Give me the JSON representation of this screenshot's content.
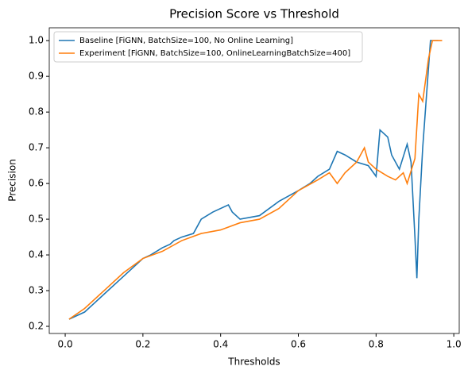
{
  "chart_data": {
    "type": "line",
    "title": "Precision Score vs Threshold",
    "xlabel": "Thresholds",
    "ylabel": "Precision",
    "xlim": [
      -0.041,
      1.014
    ],
    "ylim": [
      0.18,
      1.036
    ],
    "xticks": [
      {
        "value": 0,
        "label": "0.0"
      },
      0.2,
      0.4,
      0.6,
      0.8,
      {
        "value": 1,
        "label": "1.0"
      }
    ],
    "yticks": [
      0.2,
      0.3,
      0.4,
      0.5,
      0.6,
      0.7,
      0.8,
      0.9,
      {
        "value": 1,
        "label": "1.0"
      }
    ],
    "legend": "upper left",
    "series": [
      {
        "name": "Baseline [FiGNN, BatchSize=100, No Online Learning]",
        "color": "#1f77b4",
        "x": [
          0.01,
          0.05,
          0.1,
          0.15,
          0.2,
          0.22,
          0.25,
          0.27,
          0.28,
          0.3,
          0.33,
          0.35,
          0.38,
          0.42,
          0.43,
          0.45,
          0.5,
          0.55,
          0.6,
          0.63,
          0.65,
          0.68,
          0.7,
          0.72,
          0.75,
          0.78,
          0.8,
          0.81,
          0.83,
          0.84,
          0.86,
          0.88,
          0.89,
          0.9,
          0.905,
          0.91,
          0.92,
          0.94,
          0.96
        ],
        "values": [
          0.22,
          0.24,
          0.29,
          0.34,
          0.39,
          0.4,
          0.42,
          0.43,
          0.44,
          0.45,
          0.46,
          0.5,
          0.52,
          0.54,
          0.52,
          0.5,
          0.51,
          0.55,
          0.58,
          0.6,
          0.62,
          0.64,
          0.69,
          0.68,
          0.66,
          0.65,
          0.62,
          0.75,
          0.73,
          0.68,
          0.64,
          0.71,
          0.66,
          0.45,
          0.335,
          0.5,
          0.7,
          1.0,
          1.0
        ]
      },
      {
        "name": "Experiment [FiGNN, BatchSize=100, OnlineLearningBatchSize=400]",
        "color": "#ff7f0e",
        "x": [
          0.01,
          0.05,
          0.1,
          0.15,
          0.2,
          0.25,
          0.3,
          0.35,
          0.4,
          0.45,
          0.5,
          0.55,
          0.6,
          0.65,
          0.68,
          0.7,
          0.72,
          0.75,
          0.77,
          0.78,
          0.8,
          0.83,
          0.85,
          0.87,
          0.88,
          0.9,
          0.91,
          0.92,
          0.935,
          0.945,
          0.97
        ],
        "values": [
          0.22,
          0.25,
          0.3,
          0.35,
          0.39,
          0.41,
          0.44,
          0.46,
          0.47,
          0.49,
          0.5,
          0.53,
          0.58,
          0.61,
          0.63,
          0.6,
          0.63,
          0.66,
          0.7,
          0.66,
          0.64,
          0.62,
          0.61,
          0.63,
          0.6,
          0.67,
          0.85,
          0.83,
          0.95,
          1.0,
          1.0
        ]
      }
    ]
  }
}
